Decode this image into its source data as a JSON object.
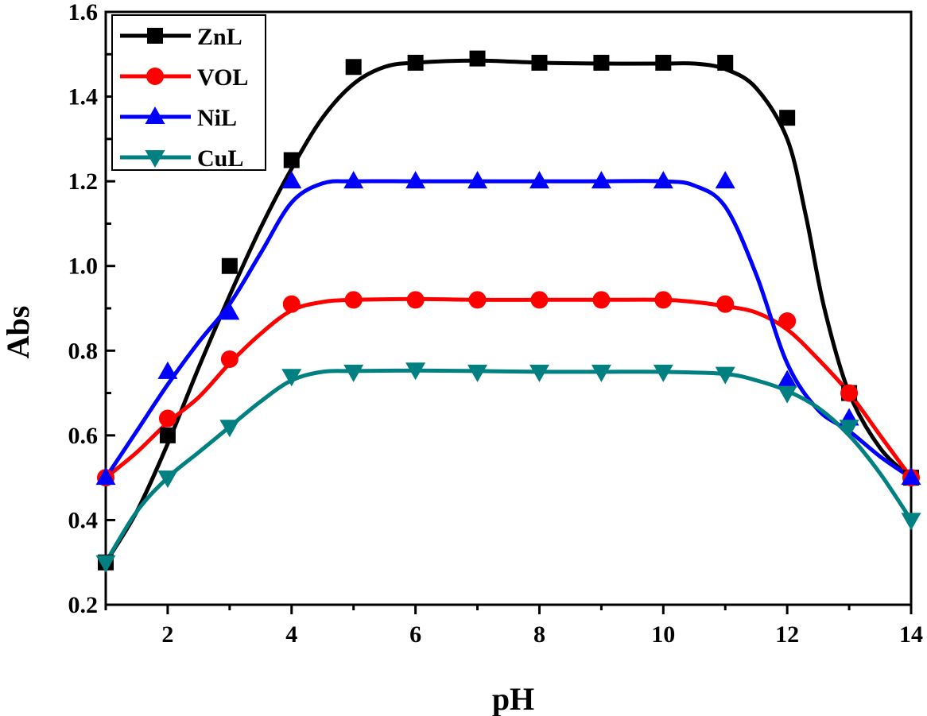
{
  "chart_data": {
    "type": "line",
    "title": "",
    "xlabel": "pH",
    "ylabel": "Abs",
    "xlim": [
      1,
      14
    ],
    "ylim": [
      0.2,
      1.6
    ],
    "xticks": [
      2,
      4,
      6,
      8,
      10,
      12,
      14
    ],
    "xtick_labels": [
      "2",
      "4",
      "6",
      "8",
      "10",
      "12",
      "14"
    ],
    "yticks": [
      0.2,
      0.4,
      0.6,
      0.8,
      1.0,
      1.2,
      1.4,
      1.6
    ],
    "ytick_labels": [
      "0.2",
      "0.4",
      "0.6",
      "0.8",
      "1.0",
      "1.2",
      "1.4",
      "1.6"
    ],
    "grid": false,
    "legend_position": "top-left",
    "series": [
      {
        "name": "ZnL",
        "color": "#000000",
        "marker": "square",
        "x": [
          1,
          2,
          3,
          4,
          5,
          6,
          7,
          8,
          9,
          10,
          11,
          12,
          13,
          14
        ],
        "values": [
          0.3,
          0.6,
          1.0,
          1.25,
          1.47,
          1.48,
          1.49,
          1.48,
          1.48,
          1.48,
          1.48,
          1.35,
          0.7,
          0.5
        ],
        "fit": [
          [
            1,
            0.3
          ],
          [
            1.5,
            0.42
          ],
          [
            2,
            0.58
          ],
          [
            2.5,
            0.76
          ],
          [
            3,
            0.93
          ],
          [
            3.5,
            1.09
          ],
          [
            4,
            1.23
          ],
          [
            4.5,
            1.35
          ],
          [
            5,
            1.43
          ],
          [
            5.5,
            1.47
          ],
          [
            6,
            1.48
          ],
          [
            7,
            1.485
          ],
          [
            8,
            1.48
          ],
          [
            9,
            1.478
          ],
          [
            10,
            1.478
          ],
          [
            10.5,
            1.478
          ],
          [
            11,
            1.465
          ],
          [
            11.5,
            1.42
          ],
          [
            12,
            1.3
          ],
          [
            12.3,
            1.12
          ],
          [
            12.6,
            0.9
          ],
          [
            13,
            0.7
          ],
          [
            13.5,
            0.57
          ],
          [
            14,
            0.5
          ]
        ]
      },
      {
        "name": "VOL",
        "color": "#ff0000",
        "marker": "circle",
        "x": [
          1,
          2,
          3,
          4,
          5,
          6,
          7,
          8,
          9,
          10,
          11,
          12,
          13,
          14
        ],
        "values": [
          0.5,
          0.64,
          0.78,
          0.91,
          0.92,
          0.92,
          0.92,
          0.92,
          0.92,
          0.92,
          0.91,
          0.87,
          0.7,
          0.5
        ],
        "fit": [
          [
            1,
            0.5
          ],
          [
            1.5,
            0.56
          ],
          [
            2,
            0.63
          ],
          [
            2.5,
            0.69
          ],
          [
            3,
            0.77
          ],
          [
            3.5,
            0.84
          ],
          [
            4,
            0.895
          ],
          [
            4.5,
            0.915
          ],
          [
            5,
            0.92
          ],
          [
            6,
            0.922
          ],
          [
            7,
            0.92
          ],
          [
            8,
            0.92
          ],
          [
            9,
            0.92
          ],
          [
            10,
            0.92
          ],
          [
            10.5,
            0.915
          ],
          [
            11,
            0.905
          ],
          [
            11.5,
            0.89
          ],
          [
            12,
            0.85
          ],
          [
            12.5,
            0.78
          ],
          [
            13,
            0.7
          ],
          [
            13.5,
            0.6
          ],
          [
            14,
            0.5
          ]
        ]
      },
      {
        "name": "NiL",
        "color": "#0000ff",
        "marker": "triangle-up",
        "x": [
          1,
          2,
          3,
          4,
          5,
          6,
          7,
          8,
          9,
          10,
          11,
          12,
          13,
          14
        ],
        "values": [
          0.5,
          0.75,
          0.89,
          1.2,
          1.2,
          1.2,
          1.2,
          1.2,
          1.2,
          1.2,
          1.2,
          0.73,
          0.64,
          0.5
        ],
        "fit": [
          [
            1,
            0.5
          ],
          [
            1.5,
            0.61
          ],
          [
            2,
            0.72
          ],
          [
            2.5,
            0.82
          ],
          [
            3,
            0.91
          ],
          [
            3.5,
            1.03
          ],
          [
            4,
            1.15
          ],
          [
            4.5,
            1.195
          ],
          [
            5,
            1.2
          ],
          [
            6,
            1.2
          ],
          [
            7,
            1.2
          ],
          [
            8,
            1.2
          ],
          [
            9,
            1.2
          ],
          [
            10,
            1.2
          ],
          [
            10.5,
            1.19
          ],
          [
            11,
            1.14
          ],
          [
            11.5,
            0.98
          ],
          [
            12,
            0.77
          ],
          [
            12.5,
            0.66
          ],
          [
            13,
            0.61
          ],
          [
            13.5,
            0.55
          ],
          [
            14,
            0.5
          ]
        ]
      },
      {
        "name": "CuL",
        "color": "#008080",
        "marker": "triangle-down",
        "x": [
          1,
          2,
          3,
          4,
          5,
          6,
          7,
          8,
          9,
          10,
          11,
          12,
          13,
          14
        ],
        "values": [
          0.3,
          0.5,
          0.62,
          0.74,
          0.75,
          0.755,
          0.75,
          0.75,
          0.75,
          0.75,
          0.745,
          0.7,
          0.62,
          0.4
        ],
        "fit": [
          [
            1,
            0.3
          ],
          [
            1.5,
            0.42
          ],
          [
            2,
            0.5
          ],
          [
            2.5,
            0.56
          ],
          [
            3,
            0.62
          ],
          [
            3.5,
            0.68
          ],
          [
            4,
            0.73
          ],
          [
            4.5,
            0.75
          ],
          [
            5,
            0.752
          ],
          [
            6,
            0.753
          ],
          [
            7,
            0.752
          ],
          [
            8,
            0.75
          ],
          [
            9,
            0.75
          ],
          [
            10,
            0.75
          ],
          [
            11,
            0.745
          ],
          [
            11.5,
            0.73
          ],
          [
            12,
            0.705
          ],
          [
            12.5,
            0.665
          ],
          [
            13,
            0.6
          ],
          [
            13.5,
            0.51
          ],
          [
            14,
            0.4
          ]
        ]
      }
    ]
  }
}
